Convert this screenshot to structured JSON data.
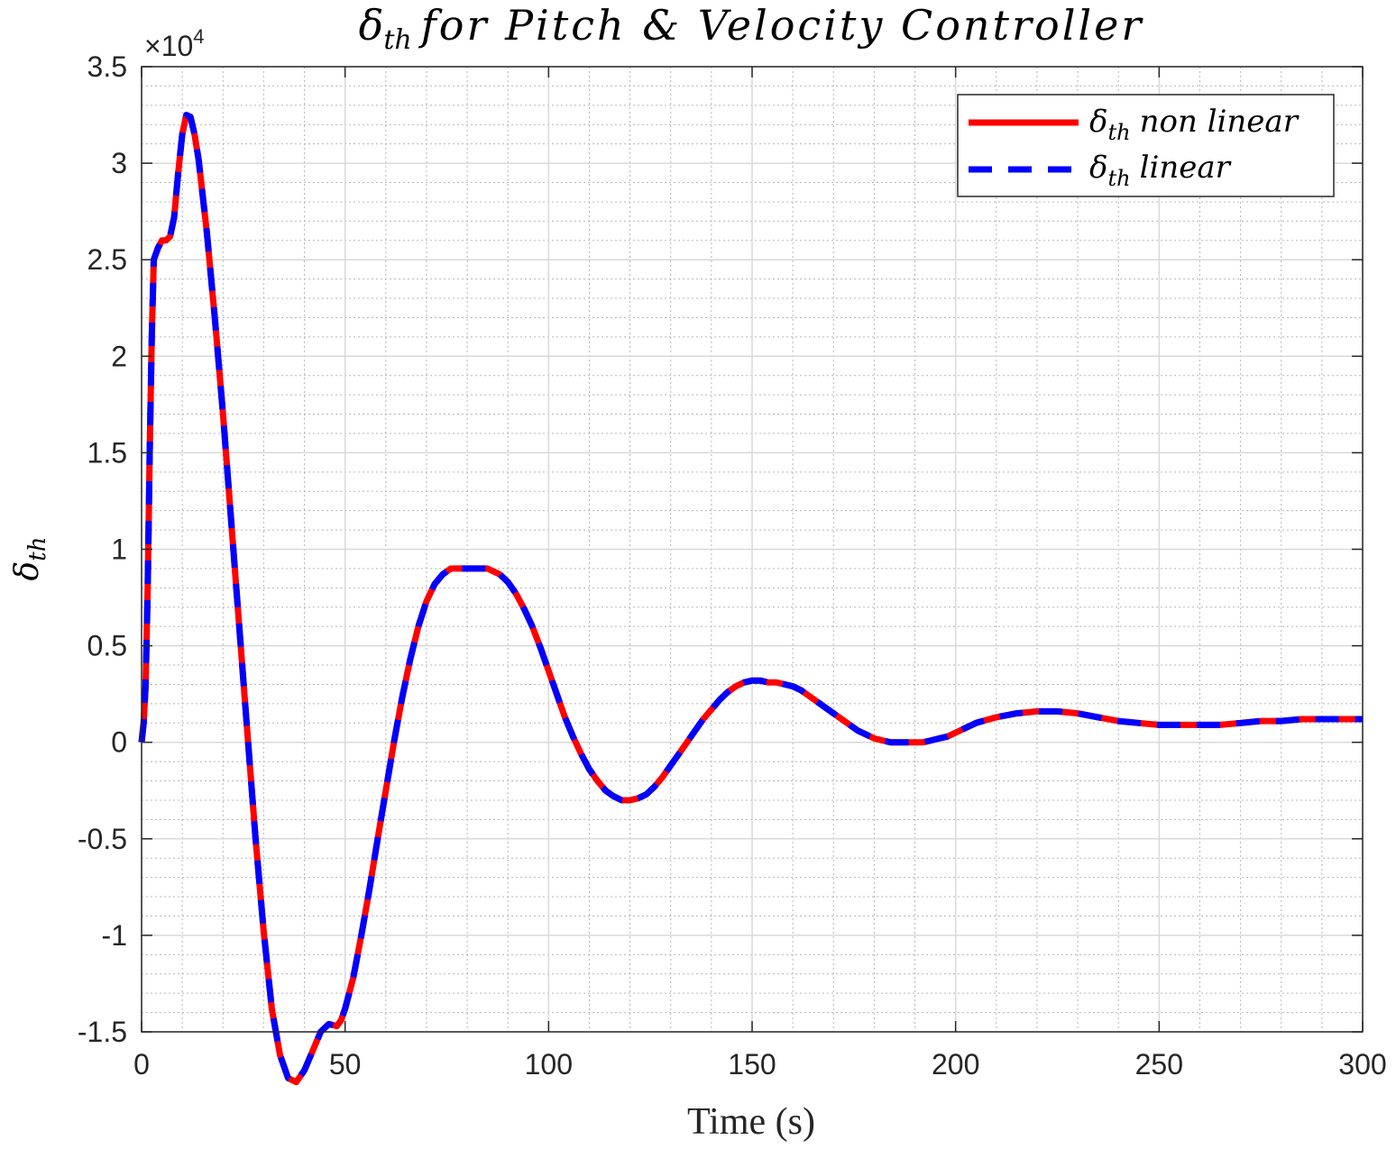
{
  "chart_data": {
    "type": "line",
    "title": {
      "symbol": "δ",
      "subscript": "th",
      "text": "for Pitch & Velocity Controller"
    },
    "xlabel": "Time (s)",
    "ylabel": {
      "symbol": "δ",
      "subscript": "th"
    },
    "exponent": {
      "base": "×10",
      "power": "4"
    },
    "xlim": [
      0,
      300
    ],
    "ylim": [
      -1.5,
      3.5
    ],
    "xticks": [
      0,
      50,
      100,
      150,
      200,
      250,
      300
    ],
    "xtick_labels": [
      "0",
      "50",
      "100",
      "150",
      "200",
      "250",
      "300"
    ],
    "yticks": [
      -1.5,
      -1,
      -0.5,
      0,
      0.5,
      1,
      1.5,
      2,
      2.5,
      3,
      3.5
    ],
    "ytick_labels": [
      "-1.5",
      "-1",
      "-0.5",
      "0",
      "0.5",
      "1",
      "1.5",
      "2",
      "2.5",
      "3",
      "3.5"
    ],
    "grid": true,
    "minor_grid": true,
    "legend_position": "top-right",
    "series": [
      {
        "name": "non linear",
        "legend_symbol": "δ",
        "legend_subscript": "th",
        "color": "#ff0000",
        "style": "solid",
        "x": [
          0,
          0.5,
          1,
          1.5,
          2,
          2.5,
          3,
          4,
          5,
          6,
          7,
          8,
          9,
          10,
          11,
          12,
          13,
          14,
          16,
          18,
          20,
          22,
          24,
          26,
          28,
          30,
          32,
          34,
          36,
          38,
          40,
          42,
          44,
          46,
          48,
          49,
          50,
          52,
          54,
          56,
          58,
          60,
          62,
          64,
          66,
          68,
          70,
          72,
          74,
          76,
          78,
          80,
          82,
          84,
          85,
          86,
          88,
          90,
          92,
          94,
          96,
          98,
          100,
          102,
          104,
          106,
          108,
          110,
          112,
          114,
          116,
          118,
          120,
          122,
          124,
          126,
          128,
          130,
          132,
          134,
          136,
          138,
          140,
          142,
          144,
          146,
          148,
          150,
          152,
          154,
          156,
          158,
          160,
          162,
          164,
          166,
          168,
          170,
          172,
          174,
          176,
          178,
          180,
          182,
          184,
          186,
          188,
          190,
          192,
          194,
          196,
          198,
          200,
          205,
          210,
          215,
          220,
          225,
          230,
          235,
          240,
          245,
          250,
          255,
          260,
          265,
          270,
          275,
          280,
          285,
          290,
          295,
          300
        ],
        "values": [
          0.0,
          0.1,
          0.3,
          0.8,
          1.5,
          2.1,
          2.5,
          2.56,
          2.6,
          2.6,
          2.62,
          2.72,
          2.95,
          3.15,
          3.25,
          3.24,
          3.15,
          3.02,
          2.65,
          2.2,
          1.7,
          1.15,
          0.6,
          0.05,
          -0.5,
          -0.98,
          -1.38,
          -1.62,
          -1.74,
          -1.76,
          -1.7,
          -1.6,
          -1.5,
          -1.46,
          -1.47,
          -1.44,
          -1.38,
          -1.22,
          -1.0,
          -0.76,
          -0.5,
          -0.25,
          0.0,
          0.23,
          0.43,
          0.6,
          0.73,
          0.82,
          0.87,
          0.9,
          0.9,
          0.9,
          0.9,
          0.9,
          0.9,
          0.89,
          0.87,
          0.83,
          0.77,
          0.69,
          0.6,
          0.49,
          0.37,
          0.25,
          0.13,
          0.03,
          -0.06,
          -0.14,
          -0.2,
          -0.25,
          -0.28,
          -0.3,
          -0.3,
          -0.29,
          -0.27,
          -0.23,
          -0.18,
          -0.12,
          -0.06,
          0.0,
          0.06,
          0.12,
          0.17,
          0.22,
          0.26,
          0.29,
          0.31,
          0.32,
          0.32,
          0.31,
          0.31,
          0.3,
          0.29,
          0.27,
          0.24,
          0.21,
          0.18,
          0.15,
          0.12,
          0.09,
          0.06,
          0.04,
          0.02,
          0.01,
          0.0,
          0.0,
          0.0,
          0.0,
          0.0,
          0.01,
          0.02,
          0.03,
          0.05,
          0.1,
          0.13,
          0.15,
          0.16,
          0.16,
          0.15,
          0.13,
          0.11,
          0.1,
          0.09,
          0.09,
          0.09,
          0.09,
          0.1,
          0.11,
          0.11,
          0.12,
          0.12,
          0.12,
          0.12
        ]
      },
      {
        "name": "linear",
        "legend_symbol": "δ",
        "legend_subscript": "th",
        "color": "#0000ff",
        "style": "dashed",
        "x": [
          0,
          0.5,
          1,
          1.5,
          2,
          2.5,
          3,
          4,
          5,
          6,
          7,
          8,
          9,
          10,
          11,
          12,
          13,
          14,
          16,
          18,
          20,
          22,
          24,
          26,
          28,
          30,
          32,
          34,
          36,
          38,
          40,
          42,
          44,
          46,
          48,
          49,
          50,
          52,
          54,
          56,
          58,
          60,
          62,
          64,
          66,
          68,
          70,
          72,
          74,
          76,
          78,
          80,
          82,
          84,
          85,
          86,
          88,
          90,
          92,
          94,
          96,
          98,
          100,
          102,
          104,
          106,
          108,
          110,
          112,
          114,
          116,
          118,
          120,
          122,
          124,
          126,
          128,
          130,
          132,
          134,
          136,
          138,
          140,
          142,
          144,
          146,
          148,
          150,
          152,
          154,
          156,
          158,
          160,
          162,
          164,
          166,
          168,
          170,
          172,
          174,
          176,
          178,
          180,
          182,
          184,
          186,
          188,
          190,
          192,
          194,
          196,
          198,
          200,
          205,
          210,
          215,
          220,
          225,
          230,
          235,
          240,
          245,
          250,
          255,
          260,
          265,
          270,
          275,
          280,
          285,
          290,
          295,
          300
        ],
        "values": [
          0.0,
          0.1,
          0.3,
          0.8,
          1.5,
          2.1,
          2.5,
          2.56,
          2.6,
          2.6,
          2.62,
          2.72,
          2.95,
          3.15,
          3.25,
          3.24,
          3.15,
          3.02,
          2.65,
          2.2,
          1.7,
          1.15,
          0.6,
          0.05,
          -0.5,
          -0.98,
          -1.38,
          -1.62,
          -1.74,
          -1.76,
          -1.7,
          -1.6,
          -1.5,
          -1.46,
          -1.47,
          -1.44,
          -1.38,
          -1.22,
          -1.0,
          -0.76,
          -0.5,
          -0.25,
          0.0,
          0.23,
          0.43,
          0.6,
          0.73,
          0.82,
          0.87,
          0.9,
          0.9,
          0.9,
          0.9,
          0.9,
          0.9,
          0.89,
          0.87,
          0.83,
          0.77,
          0.69,
          0.6,
          0.49,
          0.37,
          0.25,
          0.13,
          0.03,
          -0.06,
          -0.14,
          -0.2,
          -0.25,
          -0.28,
          -0.3,
          -0.3,
          -0.29,
          -0.27,
          -0.23,
          -0.18,
          -0.12,
          -0.06,
          0.0,
          0.06,
          0.12,
          0.17,
          0.22,
          0.26,
          0.29,
          0.31,
          0.32,
          0.32,
          0.31,
          0.31,
          0.3,
          0.29,
          0.27,
          0.24,
          0.21,
          0.18,
          0.15,
          0.12,
          0.09,
          0.06,
          0.04,
          0.02,
          0.01,
          0.0,
          0.0,
          0.0,
          0.0,
          0.0,
          0.01,
          0.02,
          0.03,
          0.05,
          0.1,
          0.13,
          0.15,
          0.16,
          0.16,
          0.15,
          0.13,
          0.11,
          0.1,
          0.09,
          0.09,
          0.09,
          0.09,
          0.1,
          0.11,
          0.11,
          0.12,
          0.12,
          0.12,
          0.12
        ]
      }
    ]
  }
}
